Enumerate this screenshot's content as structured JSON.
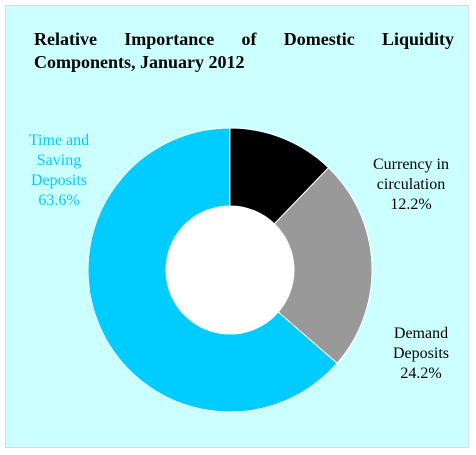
{
  "chart_data": {
    "type": "pie",
    "style": "donut",
    "title": "Relative Importance of Domestic Liquidity Components, January 2012",
    "slices": [
      {
        "key": "currency",
        "label_lines": [
          "Currency in",
          "circulation"
        ],
        "value": 12.2,
        "value_label": "12.2%",
        "color": "#000000",
        "label_color": "#000000"
      },
      {
        "key": "demand",
        "label_lines": [
          "Demand",
          "Deposits"
        ],
        "value": 24.2,
        "value_label": "24.2%",
        "color": "#999999",
        "label_color": "#000000"
      },
      {
        "key": "time",
        "label_lines": [
          "Time and",
          "Saving",
          "Deposits"
        ],
        "value": 63.6,
        "value_label": "63.6%",
        "color": "#00ccff",
        "label_color": "#00ccff"
      }
    ],
    "start_angle_deg": 0,
    "direction": "clockwise",
    "legend": "none",
    "background": "#ccffff"
  }
}
